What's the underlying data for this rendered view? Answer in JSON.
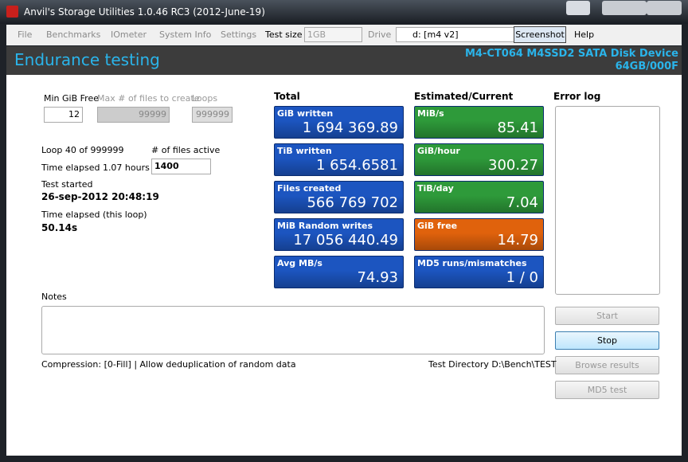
{
  "window": {
    "title": "Anvil's Storage Utilities 1.0.46 RC3 (2012-June-19)"
  },
  "menu": {
    "items": [
      "File",
      "Benchmarks",
      "IOmeter",
      "System Info",
      "Settings"
    ],
    "test_size_label": "Test size",
    "test_size": "1GB",
    "drive_label": "Drive",
    "drive": "d: [m4 v2]",
    "screenshot": "Screenshot",
    "help": "Help"
  },
  "header": {
    "title": "Endurance testing",
    "device": "M4-CT064 M4SSD2 SATA Disk Device",
    "firmware": "64GB/000F"
  },
  "settings": {
    "min_free_label": "Min GiB Free",
    "min_free": "12",
    "max_files_label": "Max # of files to create",
    "max_files": "99999",
    "loops_label": "Loops",
    "loops": "999999"
  },
  "status": {
    "loop": "Loop 40 of 999999",
    "files_active_label": "# of files active",
    "files_active": "1400",
    "elapsed": "Time elapsed 1.07 hours",
    "started_label": "Test started",
    "started": "26-sep-2012 20:48:19",
    "loop_elapsed_label": "Time elapsed (this loop)",
    "loop_elapsed": "50.14s"
  },
  "columns": [
    {
      "title": "Total",
      "tiles": [
        {
          "label": "GiB written",
          "value": "1 694 369.89",
          "color": "#1c55c0"
        },
        {
          "label": "TiB written",
          "value": "1 654.6581",
          "color": "#1c55c0"
        },
        {
          "label": "Files created",
          "value": "566 769 702",
          "color": "#1c55c0"
        },
        {
          "label": "MiB Random writes",
          "value": "17 056 440.49",
          "color": "#1c55c0"
        },
        {
          "label": "Avg MB/s",
          "value": "74.93",
          "color": "#1c55c0"
        }
      ]
    },
    {
      "title": "Estimated/Current",
      "tiles": [
        {
          "label": "MiB/s",
          "value": "85.41",
          "color": "#2e9a3a"
        },
        {
          "label": "GiB/hour",
          "value": "300.27",
          "color": "#2e9a3a"
        },
        {
          "label": "TiB/day",
          "value": "7.04",
          "color": "#2e9a3a"
        },
        {
          "label": "GiB free",
          "value": "14.79",
          "color": "#e0620c"
        },
        {
          "label": "MD5 runs/mismatches",
          "value": "1 / 0",
          "color": "#1c55c0"
        }
      ]
    }
  ],
  "error_log": {
    "title": "Error log"
  },
  "notes": {
    "label": "Notes"
  },
  "buttons": [
    "Start",
    "Stop",
    "Browse results",
    "MD5 test"
  ],
  "footer": {
    "compression": "Compression: [0-Fill] | Allow deduplication of random data",
    "directory": "Test Directory D:\\Bench\\TEST"
  }
}
